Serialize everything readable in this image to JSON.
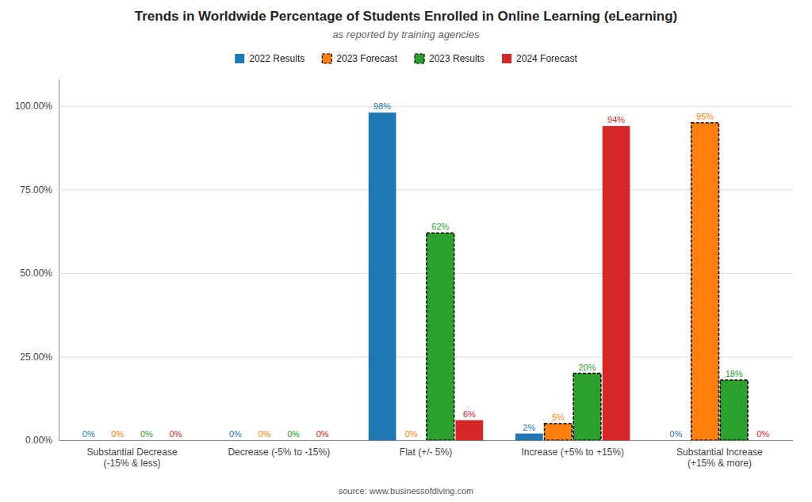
{
  "chart_data": {
    "type": "bar",
    "title": "Trends in Worldwide Percentage of Students Enrolled in Online Learning (eLearning)",
    "subtitle": "as reported by training agencies",
    "annotations": [
      "source: www.businessofdiving.com"
    ],
    "categories": [
      "Substantial Decrease\n(-15% & less)",
      "Decrease (-5% to -15%)",
      "Flat (+/- 5%)",
      "Increase (+5% to +15%)",
      "Substantial Increase\n(+15% & more)"
    ],
    "series": [
      {
        "name": "2022 Results",
        "values": [
          0,
          0,
          98,
          2,
          0
        ],
        "value_labels": [
          "0%",
          "0%",
          "98%",
          "2%",
          "0%"
        ],
        "line_style": "solid"
      },
      {
        "name": "2023 Forecast",
        "values": [
          0,
          0,
          0,
          5,
          95
        ],
        "value_labels": [
          "0%",
          "0%",
          "0%",
          "5%",
          "95%"
        ],
        "line_style": "dashed"
      },
      {
        "name": "2023 Results",
        "values": [
          0,
          0,
          62,
          20,
          18
        ],
        "value_labels": [
          "0%",
          "0%",
          "62%",
          "20%",
          "18%"
        ],
        "line_style": "dashed"
      },
      {
        "name": "2024 Forecast",
        "values": [
          0,
          0,
          6,
          94,
          0
        ],
        "value_labels": [
          "0%",
          "0%",
          "6%",
          "94%",
          "0%"
        ],
        "line_style": "solid"
      }
    ],
    "ylim": [
      0,
      108
    ],
    "yticks": [
      {
        "value": 0,
        "label": "0.00%"
      },
      {
        "value": 25,
        "label": "25.00%"
      },
      {
        "value": 50,
        "label": "50.00%"
      },
      {
        "value": 75,
        "label": "75.00%"
      },
      {
        "value": 100,
        "label": "100.00%"
      }
    ],
    "grid": true,
    "legend": "top",
    "data_labels": true
  }
}
